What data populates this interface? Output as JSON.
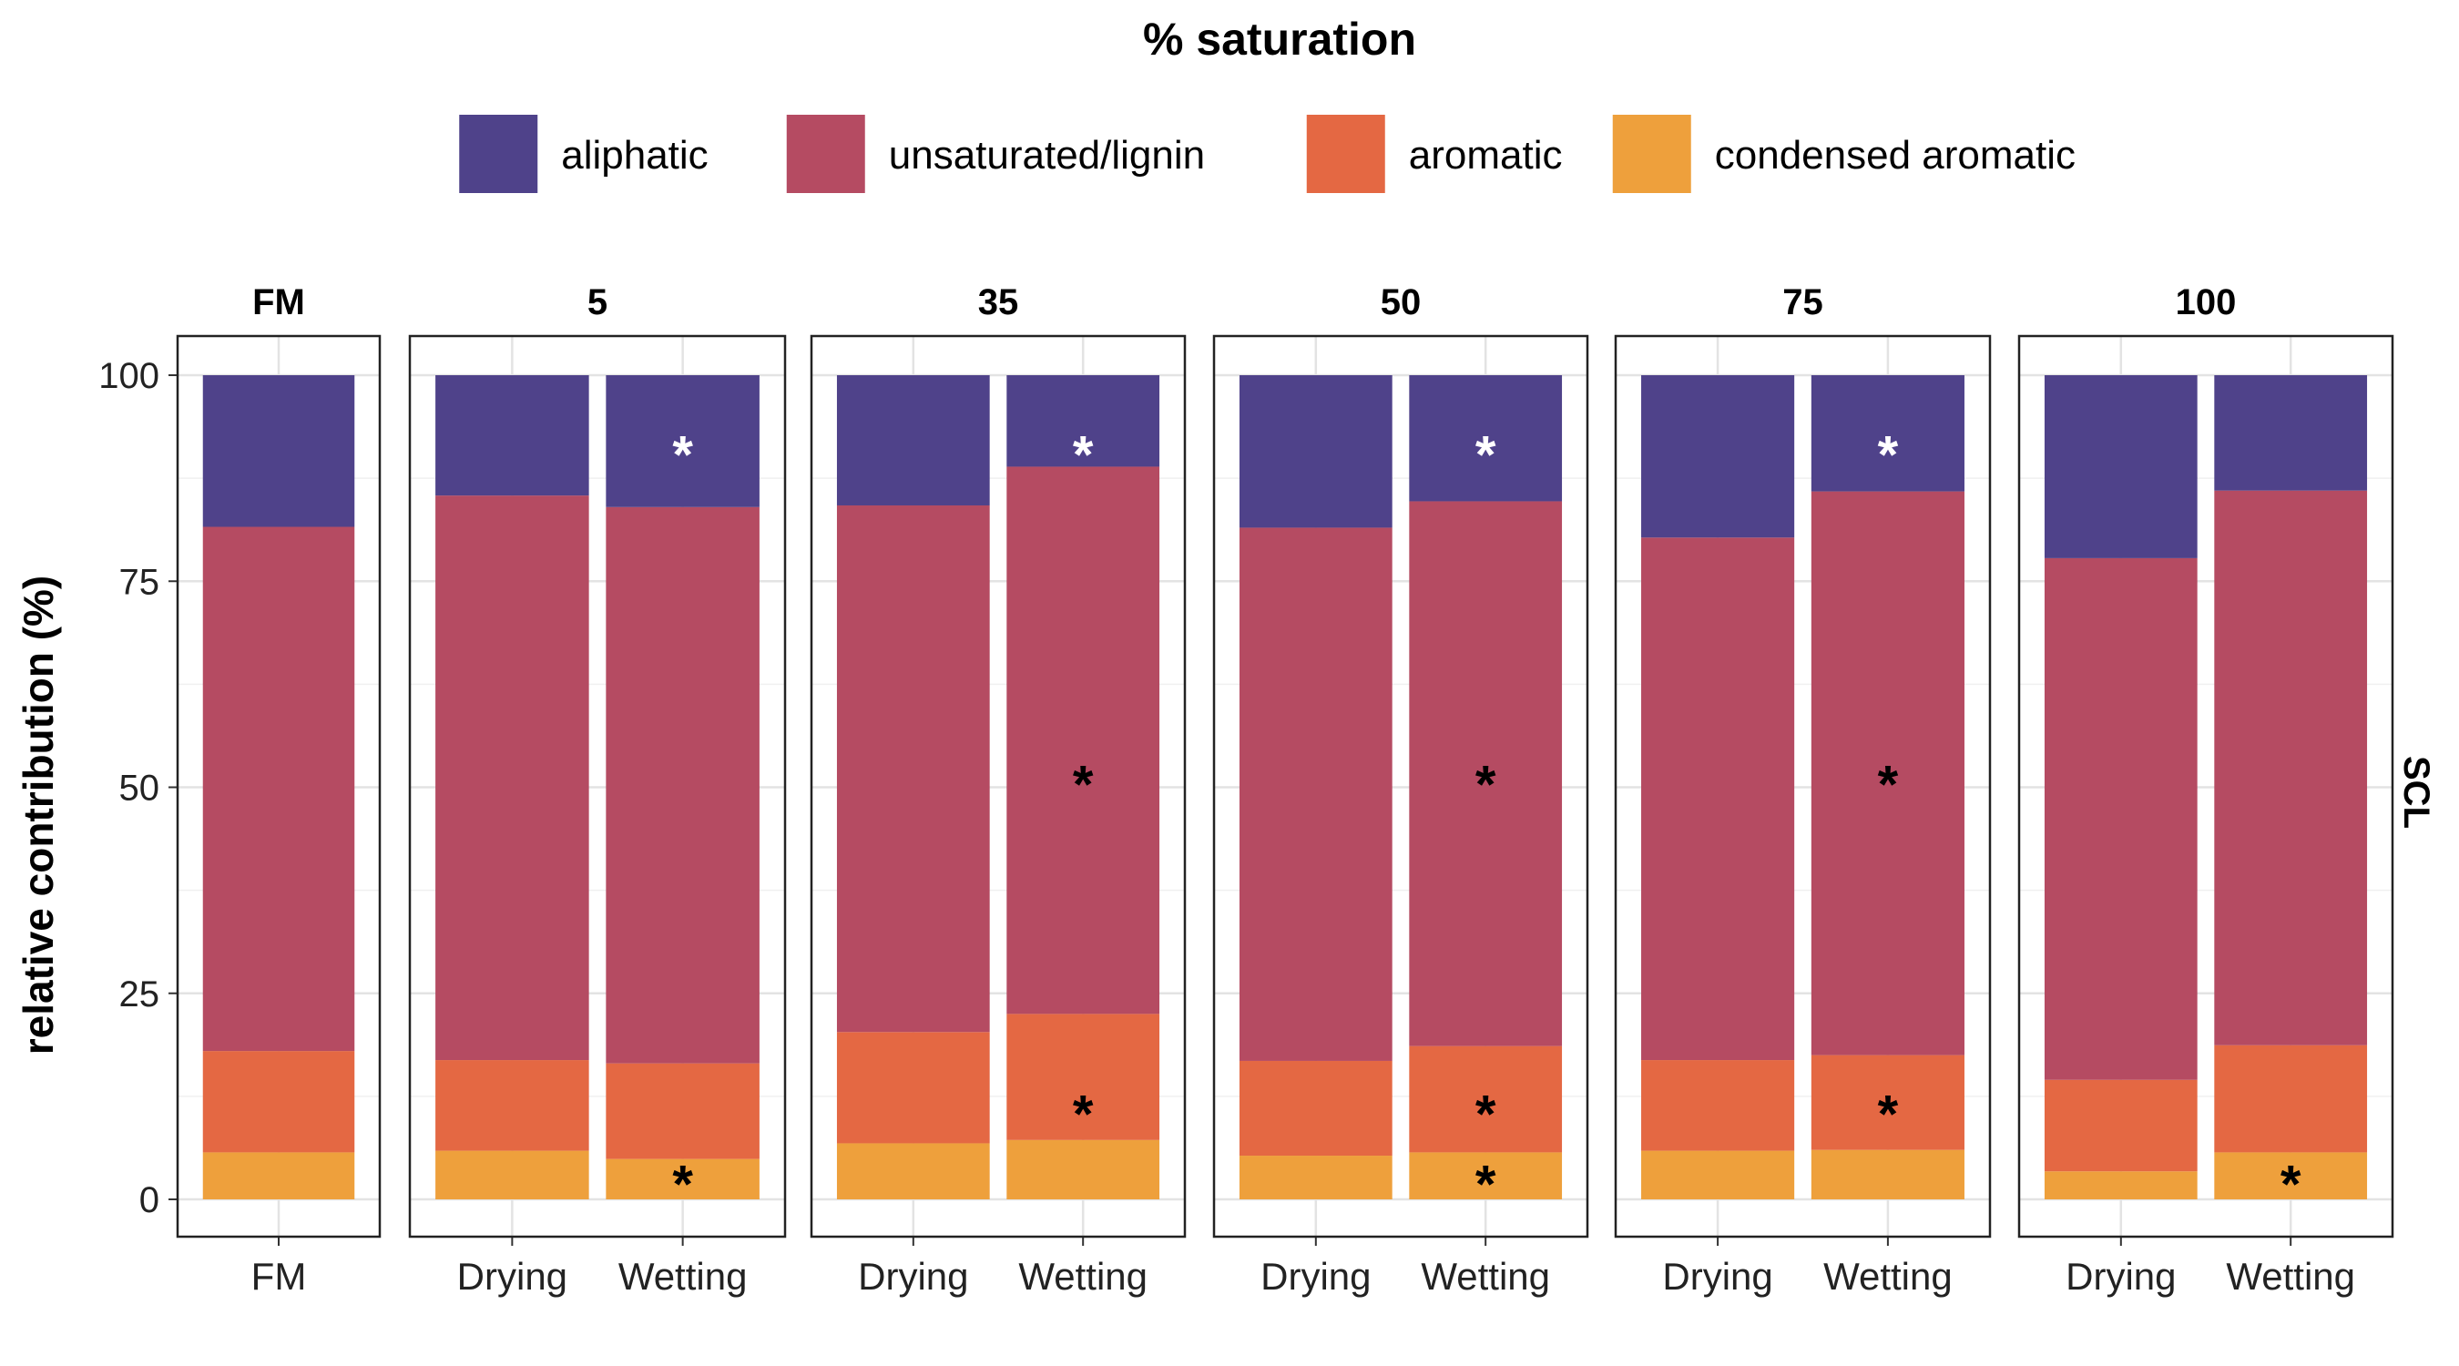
{
  "chart_data": {
    "type": "bar",
    "stacked": true,
    "ylabel": "relative contribution (%)",
    "ylim": [
      0,
      100
    ],
    "yticks": [
      0,
      25,
      50,
      75,
      100
    ],
    "grid": true,
    "strip_label_right": "SCL",
    "legend": {
      "title": "% saturation",
      "placement": "top",
      "items": [
        {
          "name": "aliphatic",
          "color": "#4f428a"
        },
        {
          "name": "unsaturated/lignin",
          "color": "#b54b62"
        },
        {
          "name": "aromatic",
          "color": "#e46843"
        },
        {
          "name": "condensed aromatic",
          "color": "#eea03c"
        }
      ]
    },
    "facets": [
      {
        "label": "FM",
        "bars": [
          {
            "category": "FM",
            "values": {
              "condensed aromatic": 5.7,
              "aromatic": 12.3,
              "unsaturated/lignin": 63.6,
              "aliphatic": 18.4
            },
            "stars": []
          }
        ]
      },
      {
        "label": "5",
        "bars": [
          {
            "category": "Drying",
            "values": {
              "condensed aromatic": 5.9,
              "aromatic": 11.0,
              "unsaturated/lignin": 68.5,
              "aliphatic": 14.6
            },
            "stars": []
          },
          {
            "category": "Wetting",
            "values": {
              "condensed aromatic": 4.9,
              "aromatic": 11.6,
              "unsaturated/lignin": 67.5,
              "aliphatic": 16.0
            },
            "stars": [
              {
                "y": 91,
                "color": "white"
              },
              {
                "y": 2.5,
                "color": "black"
              }
            ]
          }
        ]
      },
      {
        "label": "35",
        "bars": [
          {
            "category": "Drying",
            "values": {
              "condensed aromatic": 6.8,
              "aromatic": 13.5,
              "unsaturated/lignin": 63.9,
              "aliphatic": 15.8
            },
            "stars": []
          },
          {
            "category": "Wetting",
            "values": {
              "condensed aromatic": 7.2,
              "aromatic": 15.3,
              "unsaturated/lignin": 66.4,
              "aliphatic": 11.1
            },
            "stars": [
              {
                "y": 91,
                "color": "white"
              },
              {
                "y": 51,
                "color": "black"
              },
              {
                "y": 11,
                "color": "black"
              }
            ]
          }
        ]
      },
      {
        "label": "50",
        "bars": [
          {
            "category": "Drying",
            "values": {
              "condensed aromatic": 5.3,
              "aromatic": 11.5,
              "unsaturated/lignin": 64.7,
              "aliphatic": 18.5
            },
            "stars": []
          },
          {
            "category": "Wetting",
            "values": {
              "condensed aromatic": 5.7,
              "aromatic": 12.9,
              "unsaturated/lignin": 66.1,
              "aliphatic": 15.3
            },
            "stars": [
              {
                "y": 91,
                "color": "white"
              },
              {
                "y": 51,
                "color": "black"
              },
              {
                "y": 11,
                "color": "black"
              },
              {
                "y": 2.5,
                "color": "black"
              }
            ]
          }
        ]
      },
      {
        "label": "75",
        "bars": [
          {
            "category": "Drying",
            "values": {
              "condensed aromatic": 5.9,
              "aromatic": 11.0,
              "unsaturated/lignin": 63.4,
              "aliphatic": 19.7
            },
            "stars": []
          },
          {
            "category": "Wetting",
            "values": {
              "condensed aromatic": 6.0,
              "aromatic": 11.5,
              "unsaturated/lignin": 68.4,
              "aliphatic": 14.1
            },
            "stars": [
              {
                "y": 91,
                "color": "white"
              },
              {
                "y": 51,
                "color": "black"
              },
              {
                "y": 11,
                "color": "black"
              }
            ]
          }
        ]
      },
      {
        "label": "100",
        "bars": [
          {
            "category": "Drying",
            "values": {
              "condensed aromatic": 3.4,
              "aromatic": 11.1,
              "unsaturated/lignin": 63.3,
              "aliphatic": 22.2
            },
            "stars": []
          },
          {
            "category": "Wetting",
            "values": {
              "condensed aromatic": 5.7,
              "aromatic": 13.0,
              "unsaturated/lignin": 67.3,
              "aliphatic": 14.0
            },
            "stars": [
              {
                "y": 2.5,
                "color": "black"
              }
            ]
          }
        ]
      }
    ]
  }
}
